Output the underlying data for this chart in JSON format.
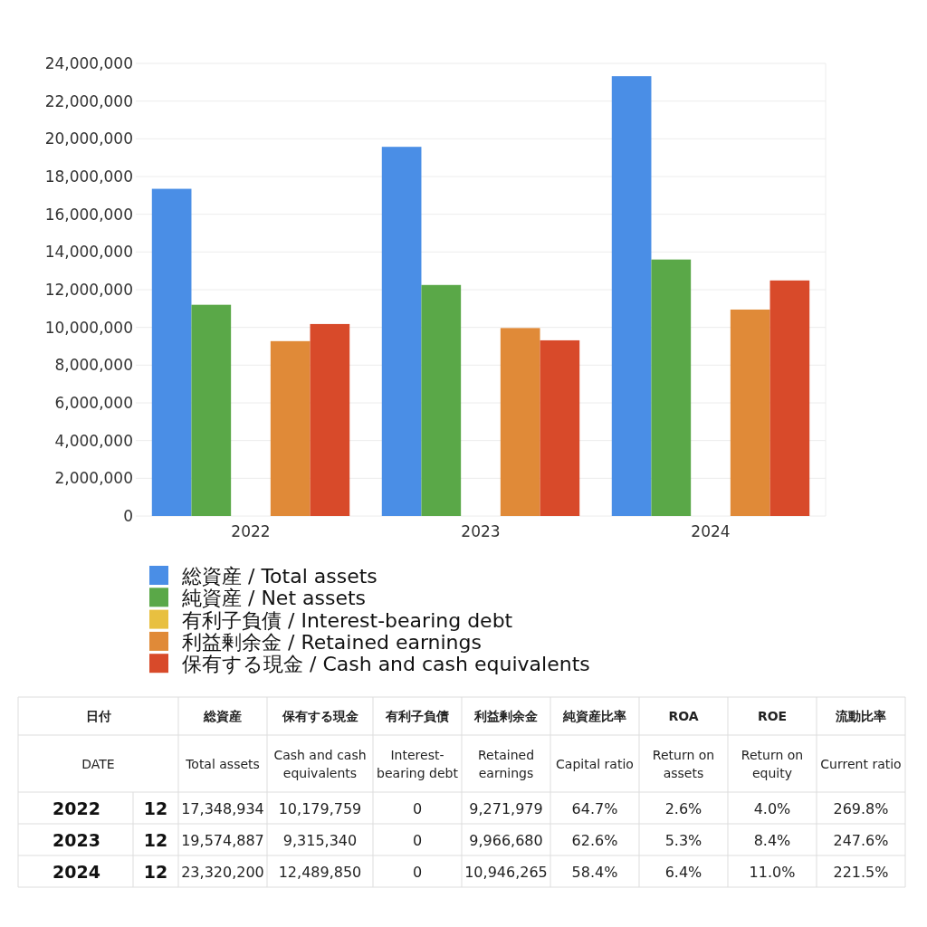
{
  "chart_data": [
    {
      "type": "bar",
      "categories": [
        "2022",
        "2023",
        "2024"
      ],
      "series": [
        {
          "name": "総資産 / Total assets",
          "color": "#4a8ee6",
          "values": [
            17348934,
            19574887,
            23320200
          ]
        },
        {
          "name": "純資産 / Net assets",
          "color": "#5aa848",
          "values": [
            11200000,
            12250000,
            13600000
          ]
        },
        {
          "name": "有利子負債 / Interest-bearing debt",
          "color": "#e8c040",
          "values": [
            0,
            0,
            0
          ]
        },
        {
          "name": "利益剰余金 / Retained earnings",
          "color": "#e08a38",
          "values": [
            9271979,
            9966680,
            10946265
          ]
        },
        {
          "name": "保有する現金 /  Cash and cash equivalents",
          "color": "#d84a2a",
          "values": [
            10179759,
            9315340,
            12489850
          ]
        }
      ],
      "ylim": [
        0,
        24000000
      ],
      "yticks": [
        {
          "value": 0,
          "label": "0"
        },
        {
          "value": 2000000,
          "label": "2,000,000"
        },
        {
          "value": 4000000,
          "label": "4,000,000"
        },
        {
          "value": 6000000,
          "label": "6,000,000"
        },
        {
          "value": 8000000,
          "label": "8,000,000"
        },
        {
          "value": 10000000,
          "label": "10,000,000"
        },
        {
          "value": 12000000,
          "label": "12,000,000"
        },
        {
          "value": 14000000,
          "label": "14,000,000"
        },
        {
          "value": 16000000,
          "label": "16,000,000"
        },
        {
          "value": 18000000,
          "label": "18,000,000"
        },
        {
          "value": 20000000,
          "label": "20,000,000"
        },
        {
          "value": 22000000,
          "label": "22,000,000"
        },
        {
          "value": 24000000,
          "label": "24,000,000"
        }
      ],
      "grid": "y",
      "legend": "bottom"
    },
    {
      "type": "other",
      "annotations": [
        "日付",
        "総資産",
        "保有する現金",
        "有利子負債",
        "利益剰余金",
        "純資産比率",
        "ROA",
        "ROE",
        "流動比率",
        "DATE",
        "Total assets",
        "Cash and cash equivalents",
        "Interest-bearing debt",
        "Retained earnings",
        "Capital ratio",
        "Return on assets",
        "Return on equity",
        "Current ratio",
        "2022",
        "12",
        "17,348,934",
        "10,179,759",
        "0",
        "9,271,979",
        "64.7%",
        "2.6%",
        "4.0%",
        "269.8%",
        "2023",
        "12",
        "19,574,887",
        "9,315,340",
        "0",
        "9,966,680",
        "62.6%",
        "5.3%",
        "8.4%",
        "247.6%",
        "2024",
        "12",
        "23,320,200",
        "12,489,850",
        "0",
        "10,946,265",
        "58.4%",
        "6.4%",
        "11.0%",
        "221.5%"
      ]
    }
  ]
}
